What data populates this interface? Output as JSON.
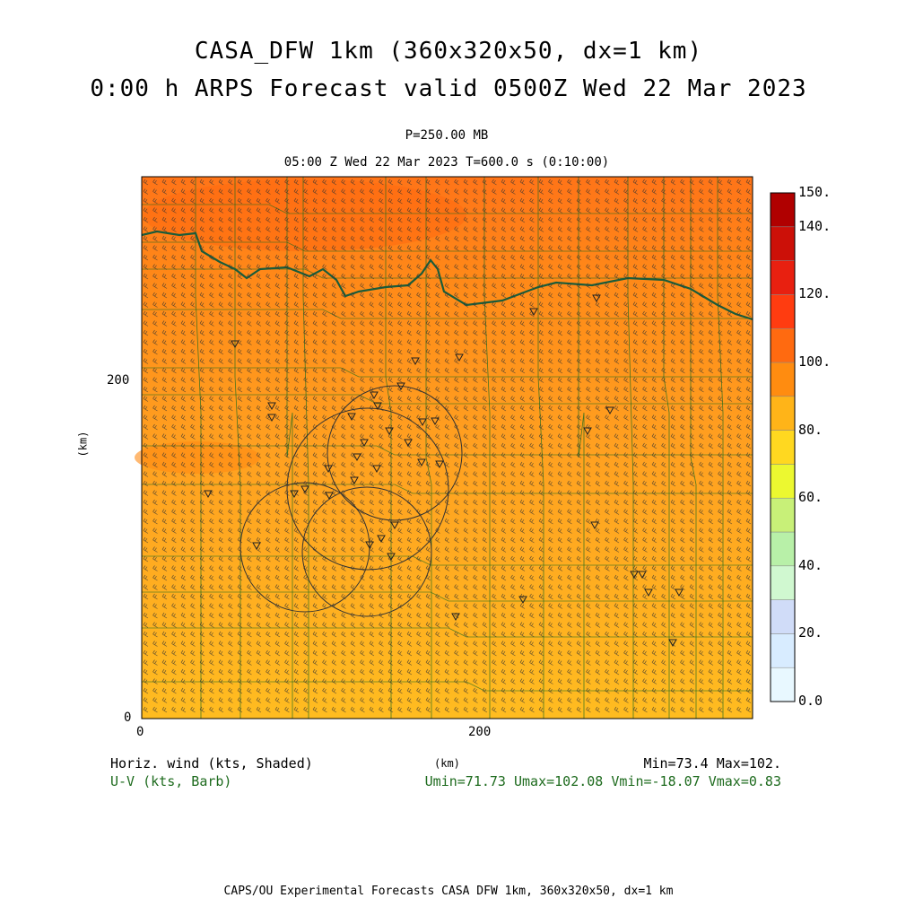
{
  "title": {
    "line1": "CASA_DFW 1km (360x320x50, dx=1 km)",
    "line2": "0:00 h ARPS Forecast valid 0500Z Wed 22 Mar 2023"
  },
  "level_label": "P=250.00 MB",
  "time_label": "05:00 Z Wed 22 Mar 2023    T=600.0 s (0:10:00)",
  "axes": {
    "unit_label": "(km)",
    "x_ticks": [
      "0",
      "200"
    ],
    "y_ticks": [
      "0",
      "200"
    ],
    "x_range_km": [
      0,
      360
    ],
    "y_range_km": [
      0,
      320
    ]
  },
  "colorbar": {
    "labels": [
      "150.",
      "140.",
      "120.",
      "100.",
      "80.",
      "60.",
      "40.",
      "20.",
      "0.0"
    ],
    "bins": [
      {
        "from": 0,
        "to": 10,
        "color": "#e8f8ff"
      },
      {
        "from": 10,
        "to": 20,
        "color": "#d8ecff"
      },
      {
        "from": 20,
        "to": 30,
        "color": "#d0dcf8"
      },
      {
        "from": 30,
        "to": 40,
        "color": "#d0f8d0"
      },
      {
        "from": 40,
        "to": 50,
        "color": "#b8f0a8"
      },
      {
        "from": 50,
        "to": 60,
        "color": "#c8f078"
      },
      {
        "from": 60,
        "to": 70,
        "color": "#ecf830"
      },
      {
        "from": 70,
        "to": 80,
        "color": "#ffd820"
      },
      {
        "from": 80,
        "to": 90,
        "color": "#ffb418"
      },
      {
        "from": 90,
        "to": 100,
        "color": "#ff8c10"
      },
      {
        "from": 100,
        "to": 110,
        "color": "#ff6a10"
      },
      {
        "from": 110,
        "to": 120,
        "color": "#ff3c10"
      },
      {
        "from": 120,
        "to": 130,
        "color": "#e82010"
      },
      {
        "from": 130,
        "to": 140,
        "color": "#cc1008"
      },
      {
        "from": 140,
        "to": 150,
        "color": "#b00000"
      }
    ]
  },
  "field": {
    "variable": "Horizontal wind speed (kts)",
    "min": 73.4,
    "max": 102.0,
    "background_color": "#ffa020",
    "high_color": "#ff7a18",
    "low_color": "#ffc018"
  },
  "legend_left": {
    "line1": "Horiz. wind (kts, Shaded)",
    "line2": "U-V (kts, Barb)"
  },
  "legend_right": {
    "minmax": "Min=73.4 Max=102.",
    "uv": "Umin=71.73 Umax=102.08 Vmin=-18.07 Vmax=0.83"
  },
  "footer": "CAPS/OU Experimental Forecasts  CASA DFW 1km, 360x320x50, dx=1 km",
  "colors": {
    "map_lines": "#1e6b1e",
    "red_river": "#1a5c3a",
    "barbs": "#333333",
    "radar_rings": "#333333"
  }
}
